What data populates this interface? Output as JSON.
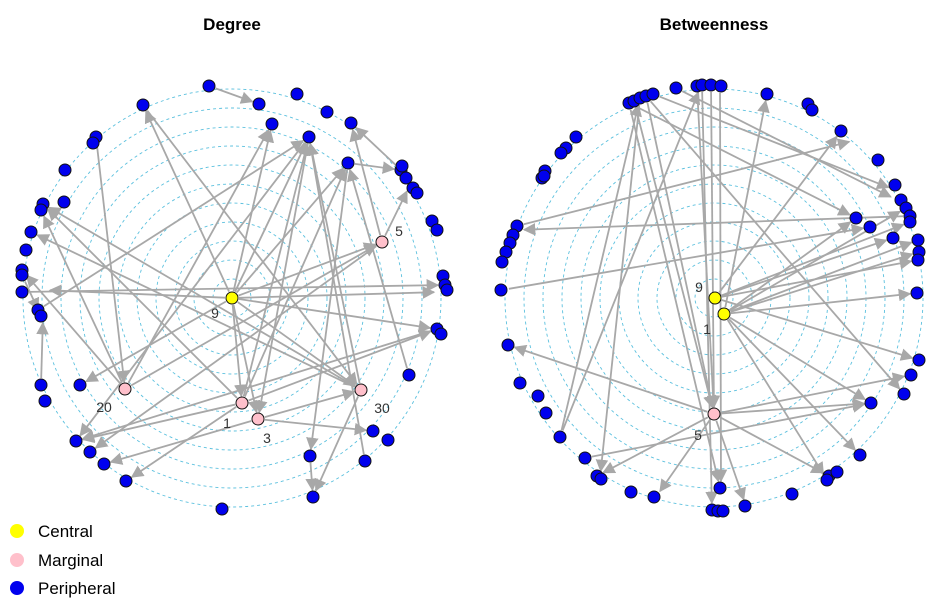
{
  "colors": {
    "central": "#ffff00",
    "marginal": "#ffc0cb",
    "peripheral": "#0000ee",
    "edge": "#a8a8a8",
    "ring": "#5bc0de",
    "node_stroke": "#111111"
  },
  "legend": [
    {
      "label": "Central",
      "class": "central"
    },
    {
      "label": "Marginal",
      "class": "marginal"
    },
    {
      "label": "Peripheral",
      "class": "peripheral"
    }
  ],
  "panels": [
    {
      "title": "Degree",
      "labels": [
        {
          "text": "9"
        },
        {
          "text": "20"
        },
        {
          "text": "1"
        },
        {
          "text": "3"
        },
        {
          "text": "30"
        },
        {
          "text": "5"
        }
      ]
    },
    {
      "title": "Betweenness",
      "labels": [
        {
          "text": "9"
        },
        {
          "text": "1"
        },
        {
          "text": "5"
        }
      ]
    }
  ]
}
